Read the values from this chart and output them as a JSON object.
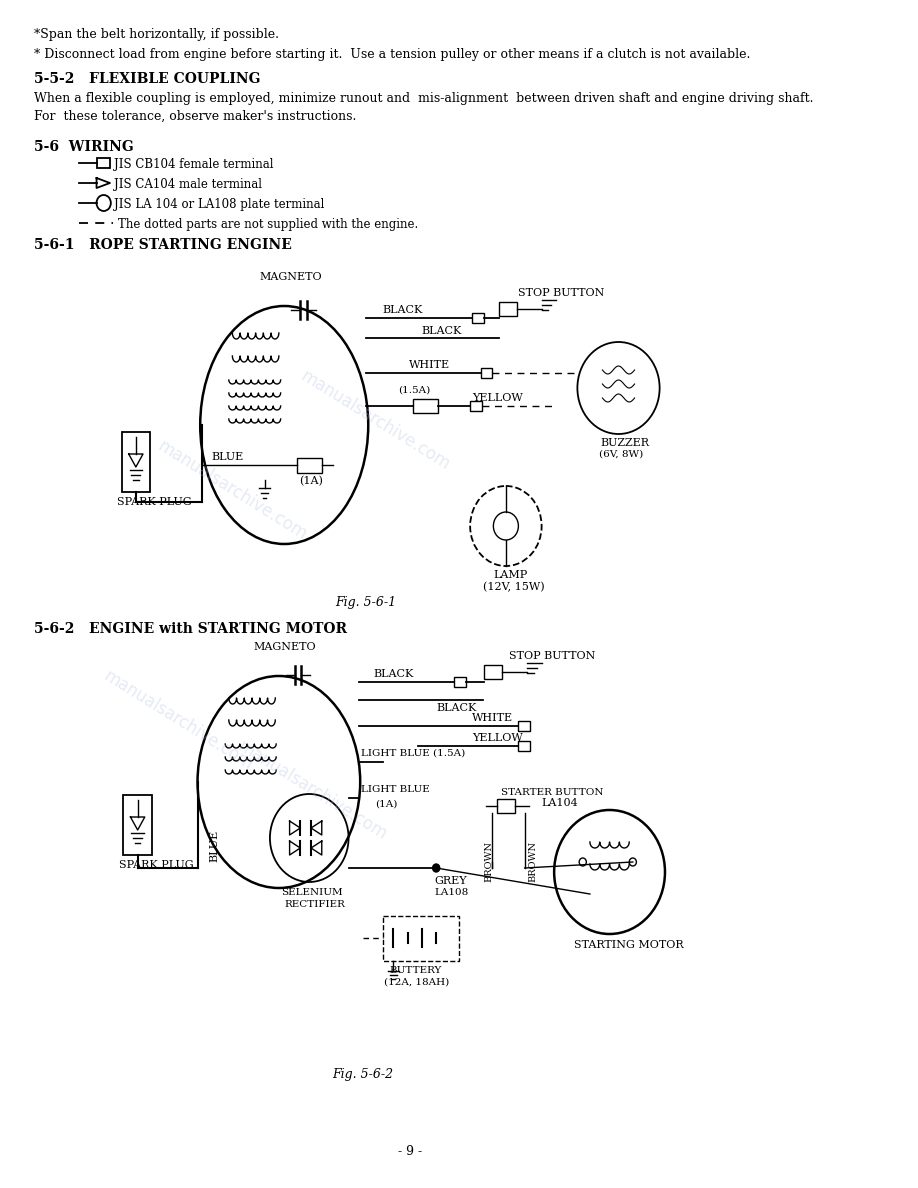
{
  "bg_color": "#ffffff",
  "text_color": "#000000",
  "page_number": "- 9 -",
  "line1": "*Span the belt horizontally, if possible.",
  "line2": "* Disconnect load from engine before starting it.  Use a tension pulley or other means if a clutch is not available.",
  "section_552": "5-5-2   FLEXIBLE COUPLING",
  "para1": "When a flexible coupling is employed, minimize runout and  mis-alignment  between driven shaft and engine driving shaft.",
  "para2": "For  these tolerance, observe maker's instructions.",
  "section_56": "5-6  WIRING",
  "legend1": "JIS CB104 female terminal",
  "legend2": "JIS CA104 male terminal",
  "legend3": "JIS LA 104 or LA108 plate terminal",
  "legend4": "The dotted parts are not supplied with the engine.",
  "section_561": "5-6-1   ROPE STARTING ENGINE",
  "fig1_label": "Fig. 5-6-1",
  "section_562": "5-6-2   ENGINE with STARTING MOTOR",
  "fig2_label": "Fig. 5-6-2",
  "watermark_color": "#aabbdd"
}
